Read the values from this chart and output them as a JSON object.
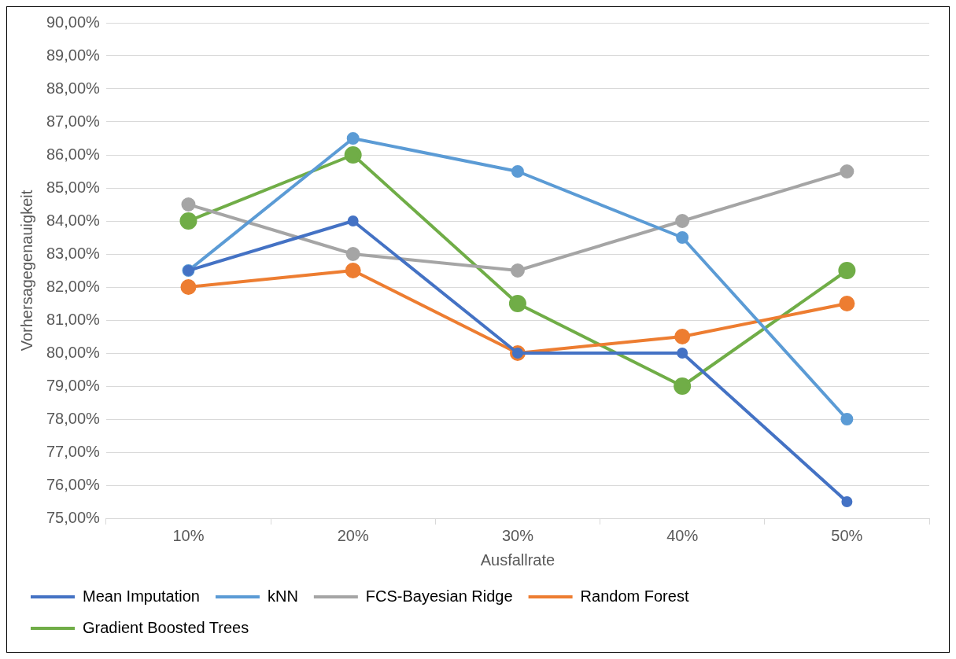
{
  "chart_data": {
    "type": "line",
    "xlabel": "Ausfallrate",
    "ylabel": "Vorhersagegenauigkeit",
    "categories": [
      "10%",
      "20%",
      "30%",
      "40%",
      "50%"
    ],
    "ylim": [
      75,
      90
    ],
    "yticks": [
      {
        "value": 75,
        "label": "75,00%"
      },
      {
        "value": 76,
        "label": "76,00%"
      },
      {
        "value": 77,
        "label": "77,00%"
      },
      {
        "value": 78,
        "label": "78,00%"
      },
      {
        "value": 79,
        "label": "79,00%"
      },
      {
        "value": 80,
        "label": "80,00%"
      },
      {
        "value": 81,
        "label": "81,00%"
      },
      {
        "value": 82,
        "label": "82,00%"
      },
      {
        "value": 83,
        "label": "83,00%"
      },
      {
        "value": 84,
        "label": "84,00%"
      },
      {
        "value": 85,
        "label": "85,00%"
      },
      {
        "value": 86,
        "label": "86,00%"
      },
      {
        "value": 87,
        "label": "87,00%"
      },
      {
        "value": 88,
        "label": "88,00%"
      },
      {
        "value": 89,
        "label": "89,00%"
      },
      {
        "value": 90,
        "label": "90,00%"
      }
    ],
    "grid": "y",
    "legend": "bottom",
    "marker": "circle",
    "line_style": "solid",
    "series": [
      {
        "name": "Mean Imputation",
        "color": "#4472c4",
        "values": [
          82.5,
          84,
          80,
          80,
          75.5
        ]
      },
      {
        "name": "kNN",
        "color": "#5b9bd5",
        "values": [
          82.5,
          86.5,
          85.5,
          83.5,
          78
        ]
      },
      {
        "name": "FCS-Bayesian Ridge",
        "color": "#a5a5a5",
        "values": [
          84.5,
          83,
          82.5,
          84,
          85.5
        ]
      },
      {
        "name": "Random Forest",
        "color": "#ed7d31",
        "values": [
          82,
          82.5,
          80,
          80.5,
          81.5
        ]
      },
      {
        "name": "Gradient Boosted Trees",
        "color": "#70ad47",
        "values": [
          84,
          86,
          81.5,
          79,
          82.5
        ]
      }
    ]
  }
}
